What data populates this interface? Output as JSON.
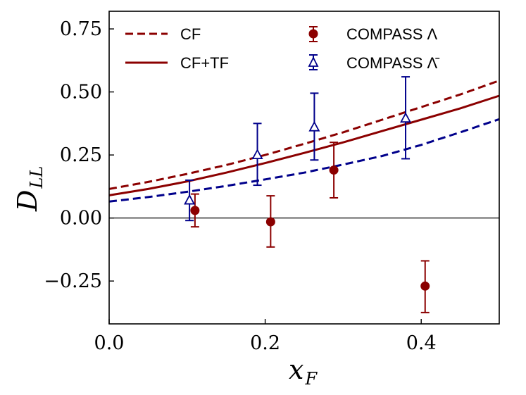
{
  "chart_data": {
    "type": "line",
    "title": "",
    "xlabel": "x",
    "xlabel_sub": "F",
    "ylabel": "D",
    "ylabel_sub": "LL",
    "xlim": [
      0.0,
      0.5
    ],
    "ylim": [
      -0.42,
      0.82
    ],
    "xticks": [
      0.0,
      0.2,
      0.4
    ],
    "xtick_labels": [
      "0.0",
      "0.2",
      "0.4"
    ],
    "yticks": [
      -0.25,
      0.0,
      0.25,
      0.5,
      0.75
    ],
    "ytick_labels": [
      "−0.25",
      "0.00",
      "0.25",
      "0.50",
      "0.75"
    ],
    "zero_line": true,
    "legend": {
      "placement": "top",
      "entries": [
        {
          "label": "CF",
          "style": "dashed",
          "color": "#8b0000",
          "key": "cf"
        },
        {
          "label": "CF+TF",
          "style": "solid",
          "color": "#8b0000",
          "key": "cftf"
        },
        {
          "label": "COMPASS Λ",
          "style": "circle",
          "color": "#8b0000",
          "key": "lambda"
        },
        {
          "label": "COMPASS Λ̄",
          "style": "triangle",
          "color": "#00008b",
          "key": "antilambda"
        }
      ]
    },
    "series": [
      {
        "name": "CF",
        "kind": "line",
        "dash": "dashed",
        "color": "#8b0000",
        "x": [
          0.0,
          0.05,
          0.1,
          0.15,
          0.2,
          0.25,
          0.3,
          0.35,
          0.4,
          0.45,
          0.5
        ],
        "y": [
          0.115,
          0.143,
          0.175,
          0.21,
          0.25,
          0.294,
          0.34,
          0.39,
          0.44,
          0.49,
          0.545
        ]
      },
      {
        "name": "CF+TF",
        "kind": "line",
        "dash": "solid",
        "color": "#8b0000",
        "x": [
          0.0,
          0.05,
          0.1,
          0.15,
          0.2,
          0.25,
          0.3,
          0.35,
          0.4,
          0.45,
          0.5
        ],
        "y": [
          0.09,
          0.115,
          0.145,
          0.18,
          0.218,
          0.258,
          0.3,
          0.345,
          0.39,
          0.435,
          0.485
        ]
      },
      {
        "name": "lower dashed",
        "kind": "line",
        "dash": "dashed",
        "color": "#00008b",
        "x": [
          0.0,
          0.05,
          0.1,
          0.15,
          0.2,
          0.25,
          0.3,
          0.35,
          0.4,
          0.45,
          0.5
        ],
        "y": [
          0.065,
          0.083,
          0.104,
          0.127,
          0.153,
          0.18,
          0.212,
          0.246,
          0.29,
          0.34,
          0.392
        ]
      },
      {
        "name": "COMPASS Λ",
        "kind": "points",
        "marker": "circle",
        "color": "#8b0000",
        "points": [
          {
            "x": 0.11,
            "y": 0.03,
            "lo": -0.035,
            "hi": 0.095
          },
          {
            "x": 0.207,
            "y": -0.015,
            "lo": -0.115,
            "hi": 0.088
          },
          {
            "x": 0.288,
            "y": 0.19,
            "lo": 0.08,
            "hi": 0.3
          },
          {
            "x": 0.405,
            "y": -0.27,
            "lo": -0.375,
            "hi": -0.17
          }
        ]
      },
      {
        "name": "COMPASS Λ̄",
        "kind": "points",
        "marker": "triangle",
        "color": "#00008b",
        "points": [
          {
            "x": 0.103,
            "y": 0.07,
            "lo": -0.01,
            "hi": 0.15
          },
          {
            "x": 0.19,
            "y": 0.25,
            "lo": 0.13,
            "hi": 0.375
          },
          {
            "x": 0.263,
            "y": 0.36,
            "lo": 0.23,
            "hi": 0.495
          },
          {
            "x": 0.38,
            "y": 0.395,
            "lo": 0.235,
            "hi": 0.56
          }
        ]
      }
    ]
  }
}
